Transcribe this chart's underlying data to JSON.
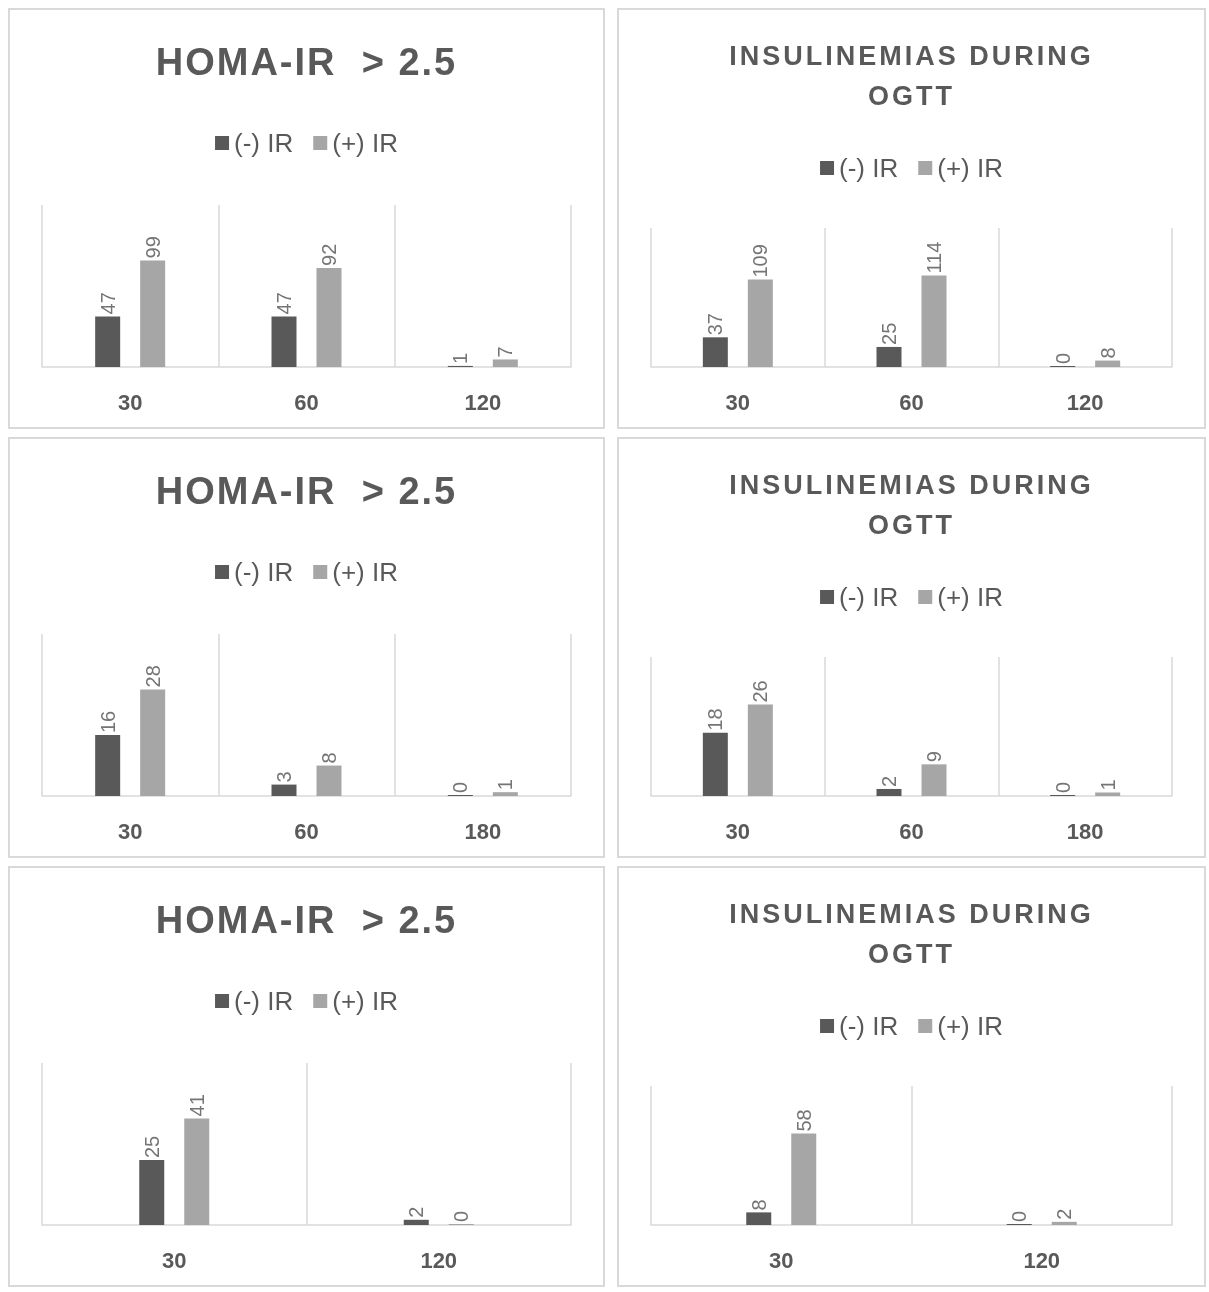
{
  "chart_data": [
    {
      "type": "bar",
      "title": "HOMA-IR  > 2.5",
      "categories": [
        "30",
        "60",
        "120"
      ],
      "data_labels": true,
      "grid": "x",
      "legend": "top",
      "series": [
        {
          "name": "(-) IR",
          "color": "#595959",
          "values": [
            47,
            47,
            1
          ]
        },
        {
          "name": "(+) IR",
          "color": "#a6a6a6",
          "values": [
            99,
            92,
            7
          ]
        }
      ]
    },
    {
      "type": "bar",
      "title": "INSULINEMIAS DURING OGTT",
      "categories": [
        "30",
        "60",
        "120"
      ],
      "data_labels": true,
      "grid": "x",
      "legend": "top",
      "series": [
        {
          "name": "(-) IR",
          "color": "#595959",
          "values": [
            37,
            25,
            0
          ]
        },
        {
          "name": "(+) IR",
          "color": "#a6a6a6",
          "values": [
            109,
            114,
            8
          ]
        }
      ]
    },
    {
      "type": "bar",
      "title": "HOMA-IR  > 2.5",
      "categories": [
        "30",
        "60",
        "180"
      ],
      "data_labels": true,
      "grid": "x",
      "legend": "top",
      "series": [
        {
          "name": "(-) IR",
          "color": "#595959",
          "values": [
            16,
            3,
            0
          ]
        },
        {
          "name": "(+) IR",
          "color": "#a6a6a6",
          "values": [
            28,
            8,
            1
          ]
        }
      ]
    },
    {
      "type": "bar",
      "title": "INSULINEMIAS DURING OGTT",
      "categories": [
        "30",
        "60",
        "180"
      ],
      "data_labels": true,
      "grid": "x",
      "legend": "top",
      "series": [
        {
          "name": "(-) IR",
          "color": "#595959",
          "values": [
            18,
            2,
            0
          ]
        },
        {
          "name": "(+) IR",
          "color": "#a6a6a6",
          "values": [
            26,
            9,
            1
          ]
        }
      ]
    },
    {
      "type": "bar",
      "title": "HOMA-IR  > 2.5",
      "categories": [
        "30",
        "120"
      ],
      "data_labels": true,
      "grid": "x",
      "legend": "top",
      "series": [
        {
          "name": "(-) IR",
          "color": "#595959",
          "values": [
            25,
            2
          ]
        },
        {
          "name": "(+) IR",
          "color": "#a6a6a6",
          "values": [
            41,
            0
          ]
        }
      ]
    },
    {
      "type": "bar",
      "title": "INSULINEMIAS DURING OGTT",
      "categories": [
        "30",
        "120"
      ],
      "data_labels": true,
      "grid": "x",
      "legend": "top",
      "series": [
        {
          "name": "(-) IR",
          "color": "#595959",
          "values": [
            8,
            0
          ]
        },
        {
          "name": "(+) IR",
          "color": "#a6a6a6",
          "values": [
            58,
            2
          ]
        }
      ]
    }
  ]
}
